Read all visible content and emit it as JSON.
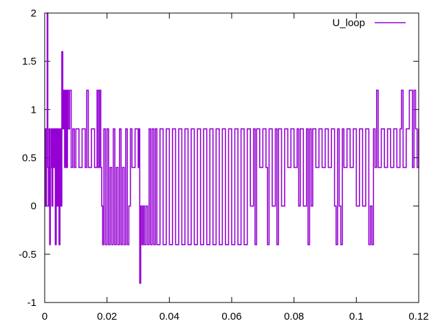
{
  "chart_data": {
    "type": "line",
    "title": "",
    "xlabel": "",
    "ylabel": "",
    "xlim": [
      0,
      0.12
    ],
    "ylim": [
      -1,
      2
    ],
    "x_ticks": [
      0,
      0.02,
      0.04,
      0.06,
      0.08,
      0.1,
      0.12
    ],
    "x_tick_labels": [
      "0",
      "0.02",
      "0.04",
      "0.06",
      "0.08",
      "0.1",
      "0.12"
    ],
    "y_ticks": [
      -1,
      -0.5,
      0,
      0.5,
      1,
      1.5,
      2
    ],
    "y_tick_labels": [
      "-1",
      "-0.5",
      "0",
      "0.5",
      "1",
      "1.5",
      "2"
    ],
    "grid": false,
    "legend_position": "top-right",
    "series": [
      {
        "name": "U_loop",
        "color": "#9400d3",
        "points": [
          [
            0.0,
            0.8
          ],
          [
            0.0003,
            0.0
          ],
          [
            0.0006,
            0.8
          ],
          [
            0.0008,
            2.0
          ],
          [
            0.001,
            0.4
          ],
          [
            0.0012,
            0.0
          ],
          [
            0.0014,
            0.8
          ],
          [
            0.0016,
            -0.4
          ],
          [
            0.0018,
            0.4
          ],
          [
            0.002,
            0.8
          ],
          [
            0.0023,
            0.0
          ],
          [
            0.0026,
            0.8
          ],
          [
            0.0028,
            0.4
          ],
          [
            0.0031,
            0.8
          ],
          [
            0.0034,
            -0.4
          ],
          [
            0.0037,
            0.8
          ],
          [
            0.004,
            0.0
          ],
          [
            0.0043,
            0.8
          ],
          [
            0.0046,
            -0.4
          ],
          [
            0.0049,
            0.8
          ],
          [
            0.0052,
            0.0
          ],
          [
            0.0055,
            1.6
          ],
          [
            0.0058,
            0.8
          ],
          [
            0.0061,
            1.2
          ],
          [
            0.0064,
            0.4
          ],
          [
            0.0067,
            1.2
          ],
          [
            0.007,
            0.4
          ],
          [
            0.0073,
            1.2
          ],
          [
            0.0076,
            0.8
          ],
          [
            0.008,
            1.2
          ],
          [
            0.0085,
            0.4
          ],
          [
            0.009,
            0.8
          ],
          [
            0.0095,
            0.4
          ],
          [
            0.01,
            0.8
          ],
          [
            0.011,
            0.4
          ],
          [
            0.012,
            0.8
          ],
          [
            0.013,
            0.4
          ],
          [
            0.0135,
            1.2
          ],
          [
            0.014,
            0.4
          ],
          [
            0.015,
            0.8
          ],
          [
            0.016,
            0.4
          ],
          [
            0.0168,
            1.2
          ],
          [
            0.0172,
            0.4
          ],
          [
            0.0176,
            1.2
          ],
          [
            0.018,
            0.4
          ],
          [
            0.0183,
            0.0
          ],
          [
            0.0186,
            -0.4
          ],
          [
            0.019,
            0.8
          ],
          [
            0.0195,
            -0.4
          ],
          [
            0.02,
            0.8
          ],
          [
            0.0205,
            -0.4
          ],
          [
            0.021,
            0.4
          ],
          [
            0.0215,
            -0.4
          ],
          [
            0.022,
            0.8
          ],
          [
            0.0225,
            -0.4
          ],
          [
            0.023,
            0.4
          ],
          [
            0.0235,
            -0.4
          ],
          [
            0.024,
            0.8
          ],
          [
            0.0245,
            -0.4
          ],
          [
            0.025,
            0.4
          ],
          [
            0.0255,
            -0.4
          ],
          [
            0.026,
            0.8
          ],
          [
            0.0265,
            -0.4
          ],
          [
            0.027,
            0.0
          ],
          [
            0.0275,
            0.8
          ],
          [
            0.028,
            0.4
          ],
          [
            0.029,
            0.8
          ],
          [
            0.03,
            0.4
          ],
          [
            0.0303,
            0.8
          ],
          [
            0.0305,
            -0.8
          ],
          [
            0.0308,
            0.0
          ],
          [
            0.0312,
            -0.4
          ],
          [
            0.0316,
            0.0
          ],
          [
            0.032,
            -0.4
          ],
          [
            0.0325,
            0.0
          ],
          [
            0.033,
            -0.4
          ],
          [
            0.0335,
            0.8
          ],
          [
            0.034,
            -0.4
          ],
          [
            0.0345,
            0.8
          ],
          [
            0.035,
            -0.4
          ],
          [
            0.0355,
            0.8
          ],
          [
            0.036,
            -0.4
          ],
          [
            0.037,
            0.8
          ],
          [
            0.038,
            -0.4
          ],
          [
            0.039,
            0.8
          ],
          [
            0.04,
            -0.4
          ],
          [
            0.041,
            0.8
          ],
          [
            0.042,
            -0.4
          ],
          [
            0.043,
            0.8
          ],
          [
            0.044,
            -0.4
          ],
          [
            0.045,
            0.8
          ],
          [
            0.046,
            -0.4
          ],
          [
            0.047,
            0.8
          ],
          [
            0.048,
            -0.4
          ],
          [
            0.049,
            0.8
          ],
          [
            0.05,
            -0.4
          ],
          [
            0.051,
            0.8
          ],
          [
            0.052,
            -0.4
          ],
          [
            0.053,
            0.8
          ],
          [
            0.054,
            -0.4
          ],
          [
            0.055,
            0.8
          ],
          [
            0.056,
            -0.4
          ],
          [
            0.057,
            0.8
          ],
          [
            0.058,
            -0.4
          ],
          [
            0.059,
            0.8
          ],
          [
            0.06,
            -0.4
          ],
          [
            0.061,
            0.8
          ],
          [
            0.062,
            -0.4
          ],
          [
            0.063,
            0.8
          ],
          [
            0.064,
            -0.4
          ],
          [
            0.065,
            0.8
          ],
          [
            0.066,
            0.0
          ],
          [
            0.067,
            0.8
          ],
          [
            0.0675,
            -0.4
          ],
          [
            0.068,
            0.8
          ],
          [
            0.069,
            0.4
          ],
          [
            0.07,
            0.8
          ],
          [
            0.071,
            0.4
          ],
          [
            0.0715,
            -0.4
          ],
          [
            0.072,
            0.8
          ],
          [
            0.073,
            0.0
          ],
          [
            0.074,
            0.8
          ],
          [
            0.0745,
            -0.4
          ],
          [
            0.075,
            0.8
          ],
          [
            0.076,
            0.0
          ],
          [
            0.077,
            0.8
          ],
          [
            0.078,
            0.4
          ],
          [
            0.079,
            0.8
          ],
          [
            0.08,
            0.4
          ],
          [
            0.081,
            0.8
          ],
          [
            0.0815,
            0.0
          ],
          [
            0.082,
            0.8
          ],
          [
            0.083,
            0.0
          ],
          [
            0.084,
            0.8
          ],
          [
            0.0845,
            -0.4
          ],
          [
            0.085,
            0.8
          ],
          [
            0.0855,
            0.0
          ],
          [
            0.086,
            0.8
          ],
          [
            0.087,
            0.4
          ],
          [
            0.088,
            0.8
          ],
          [
            0.089,
            0.4
          ],
          [
            0.09,
            0.8
          ],
          [
            0.091,
            0.4
          ],
          [
            0.092,
            0.8
          ],
          [
            0.093,
            0.0
          ],
          [
            0.0935,
            -0.4
          ],
          [
            0.094,
            0.8
          ],
          [
            0.0945,
            0.0
          ],
          [
            0.095,
            -0.4
          ],
          [
            0.0955,
            0.8
          ],
          [
            0.096,
            0.4
          ],
          [
            0.097,
            0.8
          ],
          [
            0.098,
            0.4
          ],
          [
            0.099,
            0.8
          ],
          [
            0.1,
            0.0
          ],
          [
            0.101,
            0.8
          ],
          [
            0.102,
            0.0
          ],
          [
            0.103,
            0.8
          ],
          [
            0.104,
            -0.4
          ],
          [
            0.1045,
            0.0
          ],
          [
            0.105,
            -0.4
          ],
          [
            0.1055,
            0.8
          ],
          [
            0.106,
            0.4
          ],
          [
            0.1065,
            1.2
          ],
          [
            0.107,
            0.4
          ],
          [
            0.108,
            0.8
          ],
          [
            0.109,
            0.4
          ],
          [
            0.11,
            0.8
          ],
          [
            0.111,
            0.4
          ],
          [
            0.112,
            0.8
          ],
          [
            0.113,
            0.4
          ],
          [
            0.114,
            0.8
          ],
          [
            0.1145,
            1.2
          ],
          [
            0.115,
            0.4
          ],
          [
            0.116,
            0.8
          ],
          [
            0.117,
            1.2
          ],
          [
            0.1175,
            1.2
          ],
          [
            0.118,
            0.4
          ],
          [
            0.1185,
            1.2
          ],
          [
            0.119,
            0.8
          ],
          [
            0.1195,
            0.4
          ],
          [
            0.12,
            0.8
          ]
        ]
      }
    ]
  }
}
